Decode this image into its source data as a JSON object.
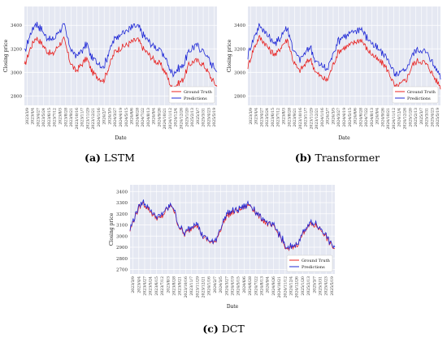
{
  "colors": {
    "plot_bg": "#e5e8f2",
    "grid": "#ffffff",
    "ground_truth": "#e8201f",
    "predictions": "#1f28d6"
  },
  "dates": [
    "2023/3/9",
    "2023/4/4",
    "2023/4/27",
    "2023/5/24",
    "2023/6/15",
    "2023/7/12",
    "2023/8/3",
    "2023/8/28",
    "2023/9/21",
    "2023/10/16",
    "2023/11/7",
    "2023/11/29",
    "2023/12/21",
    "2024/1/16",
    "2024/2/7",
    "2024/3/5",
    "2024/3/27",
    "2024/4/19",
    "2024/5/15",
    "2024/6/6",
    "2024/6/28",
    "2024/7/22",
    "2024/8/13",
    "2024/9/4",
    "2024/9/26",
    "2024/10/21",
    "2024/11/12",
    "2024/12/4",
    "2024/12/26",
    "2025/1/20",
    "2025/2/13",
    "2025/3/7",
    "2025/3/31",
    "2025/4/23",
    "2025/5/19"
  ],
  "ground_truth_base": [
    3050,
    3200,
    3300,
    3250,
    3180,
    3150,
    3230,
    3280,
    3100,
    3010,
    3060,
    3120,
    3000,
    2960,
    2930,
    3060,
    3180,
    3210,
    3230,
    3260,
    3280,
    3200,
    3150,
    3100,
    3070,
    2990,
    2870,
    2900,
    2940,
    3060,
    3100,
    3090,
    3040,
    2950,
    2880
  ],
  "chart_data": [
    {
      "panel": "a",
      "type": "line",
      "caption_tag": "(a)",
      "caption_name": "LSTM",
      "xlabel": "Date",
      "ylabel": "Closing price",
      "yticks": [
        2800,
        3000,
        3200,
        3400
      ],
      "ylim": [
        2720,
        3560
      ],
      "legend": {
        "position": "bottom-right",
        "entries": [
          "Ground Truth",
          "Predictions"
        ]
      },
      "x": "dates",
      "series": [
        {
          "name": "Ground Truth",
          "values_from": "ground_truth_base",
          "offset": 0
        },
        {
          "name": "Predictions",
          "values_from": "ground_truth_base",
          "offset": 120
        }
      ]
    },
    {
      "panel": "b",
      "type": "line",
      "caption_tag": "(b)",
      "caption_name": "Transformer",
      "xlabel": "Date",
      "ylabel": "Closing price",
      "yticks": [
        2800,
        3000,
        3200,
        3400
      ],
      "ylim": [
        2720,
        3560
      ],
      "legend": {
        "position": "bottom-right",
        "entries": [
          "Ground Truth",
          "Predictions"
        ]
      },
      "x": "dates",
      "series": [
        {
          "name": "Ground Truth",
          "values_from": "ground_truth_base",
          "offset": 0
        },
        {
          "name": "Predictions",
          "values_from": "ground_truth_base",
          "offset": 95
        }
      ]
    },
    {
      "panel": "c",
      "type": "line",
      "caption_tag": "(c)",
      "caption_name": "DCT",
      "xlabel": "Date",
      "ylabel": "Closing price",
      "yticks": [
        2700,
        2800,
        2900,
        3000,
        3100,
        3200,
        3300,
        3400
      ],
      "ylim": [
        2660,
        3460
      ],
      "legend": {
        "position": "bottom-right",
        "entries": [
          "Ground Truth",
          "Predictions"
        ]
      },
      "x": "dates",
      "series": [
        {
          "name": "Ground Truth",
          "values_from": "ground_truth_base",
          "offset": 0
        },
        {
          "name": "Predictions",
          "values_from": "ground_truth_base",
          "offset": 12
        }
      ]
    }
  ]
}
